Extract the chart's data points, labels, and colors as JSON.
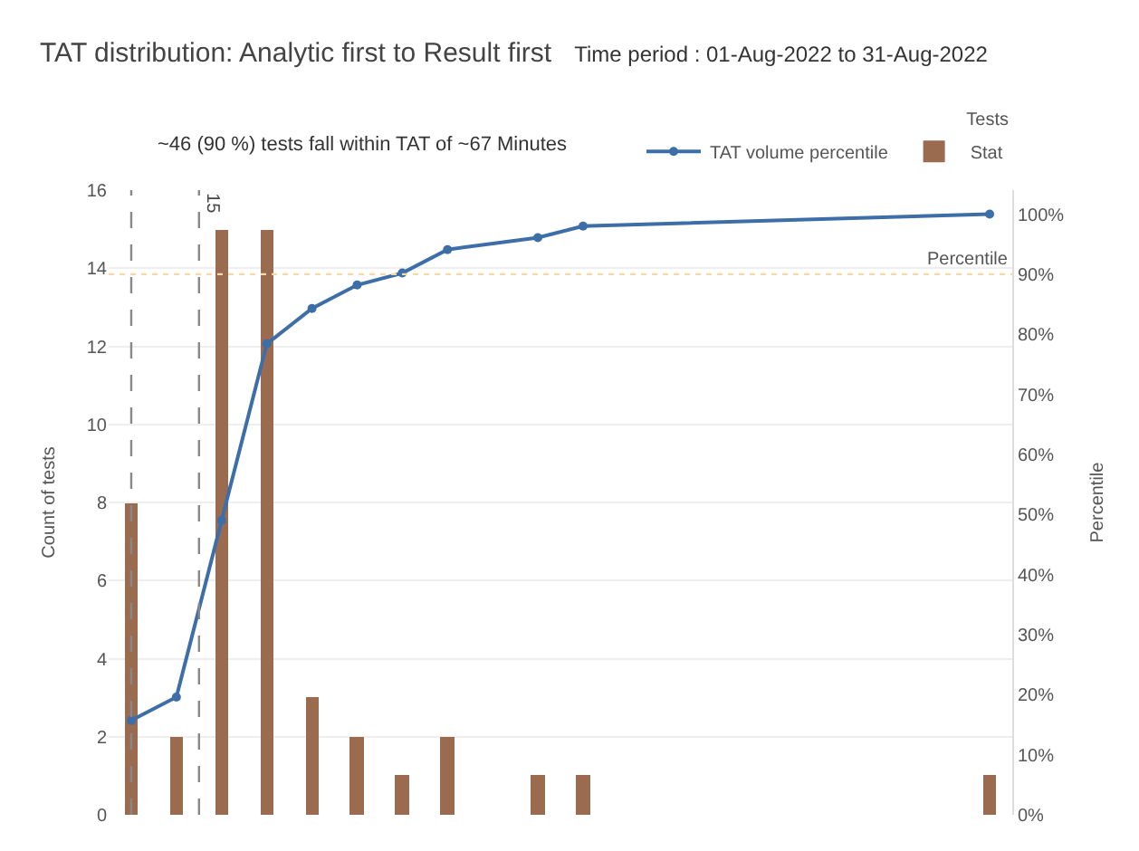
{
  "chart_data": {
    "type": "bar",
    "title": "TAT distribution: Analytic first to Result first",
    "subtitle": "Time period : 01-Aug-2022 to 31-Aug-2022",
    "ylabel": "Count of tests",
    "y2label": "Percentile",
    "legend_title": "Tests",
    "annotations": [
      "~46 (90 %) tests fall within TAT of ~67 Minutes",
      "15"
    ],
    "categories": [
      null,
      null,
      null,
      null,
      null,
      null,
      null,
      null,
      null,
      null,
      null,
      null,
      null,
      null,
      null,
      null,
      null,
      null,
      null,
      null
    ],
    "series": [
      {
        "name": "TAT volume percentile",
        "type": "line",
        "axis": "y2",
        "color": "#3d6ea8",
        "marker": "circle",
        "values": [
          15.7,
          19.6,
          49,
          78.4,
          84.3,
          88.2,
          90.2,
          94.1,
          null,
          96.1,
          98,
          null,
          null,
          null,
          null,
          null,
          null,
          null,
          null,
          100
        ]
      },
      {
        "name": "Stat",
        "color": "#9b6b50",
        "values": [
          8,
          2,
          15,
          15,
          3,
          2,
          1,
          2,
          0,
          1,
          1,
          0,
          0,
          0,
          0,
          0,
          0,
          0,
          0,
          1
        ]
      }
    ],
    "ylim": [
      0,
      16
    ],
    "yticks": [
      0,
      2,
      4,
      6,
      8,
      10,
      12,
      14,
      16
    ],
    "y2lim": [
      0,
      104
    ],
    "y2ticks": [
      {
        "value": 0,
        "label": "0%"
      },
      {
        "value": 10,
        "label": "10%"
      },
      {
        "value": 20,
        "label": "20%"
      },
      {
        "value": 30,
        "label": "30%"
      },
      {
        "value": 40,
        "label": "40%"
      },
      {
        "value": 50,
        "label": "50%"
      },
      {
        "value": 60,
        "label": "60%"
      },
      {
        "value": 70,
        "label": "70%"
      },
      {
        "value": 80,
        "label": "80%"
      },
      {
        "value": 90,
        "label": "90%"
      },
      {
        "value": 100,
        "label": "100%"
      }
    ],
    "ref_lines": [
      {
        "axis": "y2",
        "value": 90,
        "label": "Percentile",
        "color": "#f3d9a8",
        "line_style": "dotted"
      }
    ],
    "grid": "y",
    "legend": "top right",
    "tick_labels": "y"
  }
}
